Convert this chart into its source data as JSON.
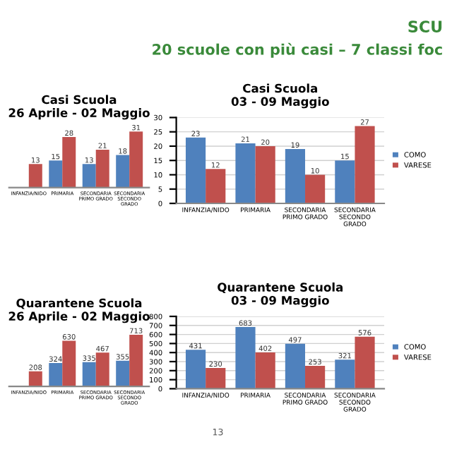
{
  "chart_data": [
    {
      "type": "bar",
      "title": "Casi Scuola",
      "subtitle": "26 Aprile - 02 Maggio",
      "annotations": [
        "SCU",
        "20 scuole con più casi – 7 classi foc"
      ],
      "categories": [
        "INFANZIA/NIDO",
        "PRIMARIA",
        "SECONDARIA\nPRIMO GRADO",
        "SECONDARIA\nSECONDO\nGRADO"
      ],
      "series": [
        {
          "color": "#4f81bd",
          "values": [
            null,
            15,
            13,
            18
          ]
        },
        {
          "color": "#c0504d",
          "values": [
            13,
            28,
            21,
            31
          ]
        }
      ],
      "data_labels": true,
      "tick_labels": "x",
      "legend": false
    },
    {
      "type": "bar",
      "title": "Casi Scuola",
      "subtitle": "03 - 09 Maggio",
      "categories": [
        "INFANZIA/NIDO",
        "PRIMARIA",
        "SECONDARIA\nPRIMO GRADO",
        "SECONDARIA\nSECONDO\nGRADO"
      ],
      "series": [
        {
          "name": "COMO",
          "color": "#4f81bd",
          "values": [
            23,
            21,
            19,
            15
          ]
        },
        {
          "name": "VARESE",
          "color": "#c0504d",
          "values": [
            12,
            20,
            10,
            27
          ]
        }
      ],
      "ylim": [
        0,
        30
      ],
      "yticks": [
        0,
        5,
        10,
        15,
        20,
        25,
        30
      ],
      "grid": "y",
      "data_labels": true,
      "legend": "right"
    },
    {
      "type": "bar",
      "title": "Quarantene Scuola",
      "subtitle": "26 Aprile - 02 Maggio",
      "categories": [
        "INFANZIA/NIDO",
        "PRIMARIA",
        "SECONDARIA\nPRIMO GRADO",
        "SECONDARIA\nSECONDO\nGRADO"
      ],
      "series": [
        {
          "color": "#4f81bd",
          "values": [
            null,
            324,
            335,
            355
          ]
        },
        {
          "color": "#c0504d",
          "values": [
            208,
            630,
            467,
            713
          ]
        }
      ],
      "data_labels": true,
      "tick_labels": "x",
      "legend": false
    },
    {
      "type": "bar",
      "title": "Quarantene Scuola",
      "subtitle": "03 - 09 Maggio",
      "annotations": [
        "13"
      ],
      "categories": [
        "INFANZIA/NIDO",
        "PRIMARIA",
        "SECONDARIA\nPRIMO GRADO",
        "SECONDARIA\nSECONDO\nGRADO"
      ],
      "series": [
        {
          "name": "COMO",
          "color": "#4f81bd",
          "values": [
            431,
            683,
            497,
            321
          ]
        },
        {
          "name": "VARESE",
          "color": "#c0504d",
          "values": [
            230,
            402,
            253,
            576
          ]
        }
      ],
      "ylim": [
        0,
        800
      ],
      "yticks": [
        0,
        100,
        200,
        300,
        400,
        500,
        600,
        700,
        800
      ],
      "grid": "y",
      "data_labels": true,
      "legend": "right"
    }
  ]
}
